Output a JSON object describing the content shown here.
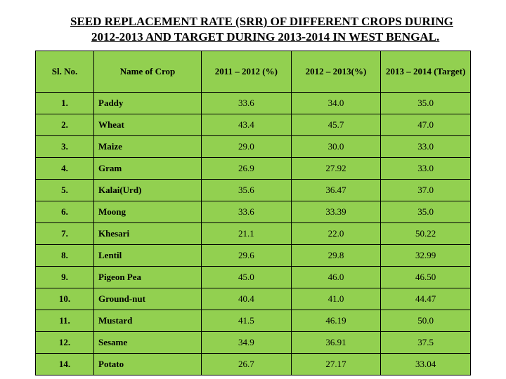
{
  "title_line1": "SEED REPLACEMENT RATE (SRR) OF DIFFERENT CROPS DURING",
  "title_line2": "2012-2013 AND TARGET DURING 2013-2014 IN WEST BENGAL.",
  "table": {
    "columns": [
      "Sl. No.",
      "Name of Crop",
      "2011 – 2012 (%)",
      "2012 – 2013(%)",
      "2013 – 2014 (Target)"
    ],
    "rows": [
      {
        "sl": "1.",
        "name": "Paddy",
        "v1": "33.6",
        "v2": "34.0",
        "v3": "35.0"
      },
      {
        "sl": "2.",
        "name": "Wheat",
        "v1": "43.4",
        "v2": "45.7",
        "v3": "47.0"
      },
      {
        "sl": "3.",
        "name": "Maize",
        "v1": "29.0",
        "v2": "30.0",
        "v3": "33.0"
      },
      {
        "sl": "4.",
        "name": "Gram",
        "v1": "26.9",
        "v2": "27.92",
        "v3": "33.0"
      },
      {
        "sl": "5.",
        "name": "Kalai(Urd)",
        "v1": "35.6",
        "v2": "36.47",
        "v3": "37.0"
      },
      {
        "sl": "6.",
        "name": "Moong",
        "v1": "33.6",
        "v2": "33.39",
        "v3": "35.0"
      },
      {
        "sl": "7.",
        "name": "Khesari",
        "v1": "21.1",
        "v2": "22.0",
        "v3": "50.22"
      },
      {
        "sl": "8.",
        "name": "Lentil",
        "v1": "29.6",
        "v2": "29.8",
        "v3": "32.99"
      },
      {
        "sl": "9.",
        "name": "Pigeon Pea",
        "v1": "45.0",
        "v2": "46.0",
        "v3": "46.50"
      },
      {
        "sl": "10.",
        "name": "Ground-nut",
        "v1": "40.4",
        "v2": "41.0",
        "v3": "44.47"
      },
      {
        "sl": "11.",
        "name": "Mustard",
        "v1": "41.5",
        "v2": "46.19",
        "v3": "50.0"
      },
      {
        "sl": "12.",
        "name": "Sesame",
        "v1": "34.9",
        "v2": "36.91",
        "v3": "37.5"
      },
      {
        "sl": "14.",
        "name": "Potato",
        "v1": "26.7",
        "v2": "27.17",
        "v3": "33.04"
      }
    ],
    "header_bg": "#92d050",
    "cell_bg": "#92d050",
    "border_color": "#000000",
    "font_family": "Times New Roman",
    "header_fontsize": 13,
    "cell_fontsize": 13
  }
}
